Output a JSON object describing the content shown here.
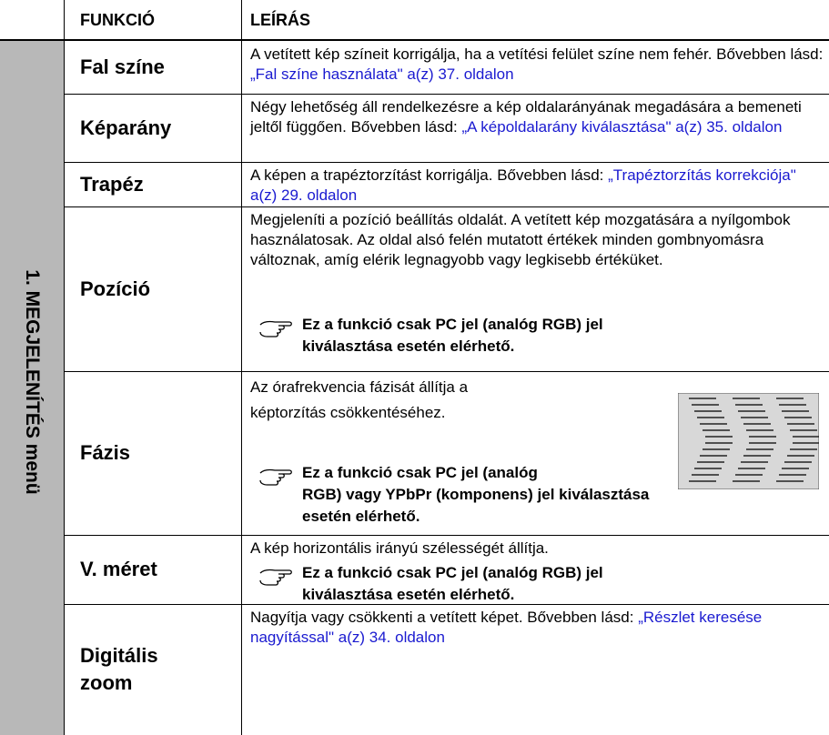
{
  "header": {
    "function": "FUNKCIÓ",
    "description": "LEÍRÁS"
  },
  "section": "1. MEGJELENÍTÉS menü",
  "rows": [
    {
      "function": "Fal színe",
      "text": "A vetített kép színeit korrigálja, ha a vetítési felület színe nem fehér. Bővebben lásd: ",
      "link": "„Fal színe használata\" a(z) 37. oldalon"
    },
    {
      "function": "Képarány",
      "text": "Négy lehetőség áll rendelkezésre a kép oldalarányának megadására a bemeneti jeltől függően. Bővebben lásd: ",
      "link": "„A képoldalarány kiválasztása\" a(z) 35. oldalon"
    },
    {
      "function": "Trapéz",
      "text": "A képen a trapéztorzítást korrigálja. Bővebben lásd: ",
      "link": "„Trapéztorzítás korrekciója\" a(z) 29. oldalon"
    },
    {
      "function": "Pozíció",
      "text": "Megjeleníti a pozíció beállítás oldalát. A vetített kép mozgatására a nyílgombok használatosak. Az oldal alsó felén mutatott értékek minden gombnyomásra változnak, amíg elérik legnagyobb vagy legkisebb értéküket.",
      "note": [
        "Ez a funkció csak PC jel (analóg RGB) jel",
        "kiválasztása esetén elérhető."
      ]
    },
    {
      "function": "Fázis",
      "text": "Az órafrekvencia fázisát állítja a képtorzítás csökkentéséhez.",
      "note": [
        "Ez a funkció csak PC jel (analóg",
        "RGB) vagy YPbPr (komponens) jel kiválasztása",
        "esetén elérhető."
      ]
    },
    {
      "function": "V. méret",
      "text": "A kép horizontális irányú szélességét állítja.",
      "note": [
        "Ez a funkció csak PC jel (analóg RGB) jel",
        "kiválasztása esetén elérhető."
      ]
    },
    {
      "function": "Digitális zoom",
      "text": "Nagyítja vagy csökkenti a vetített képet. Bővebben lásd: ",
      "link": "„Részlet keresése nagyítással\" a(z) 34. oldalon"
    }
  ]
}
